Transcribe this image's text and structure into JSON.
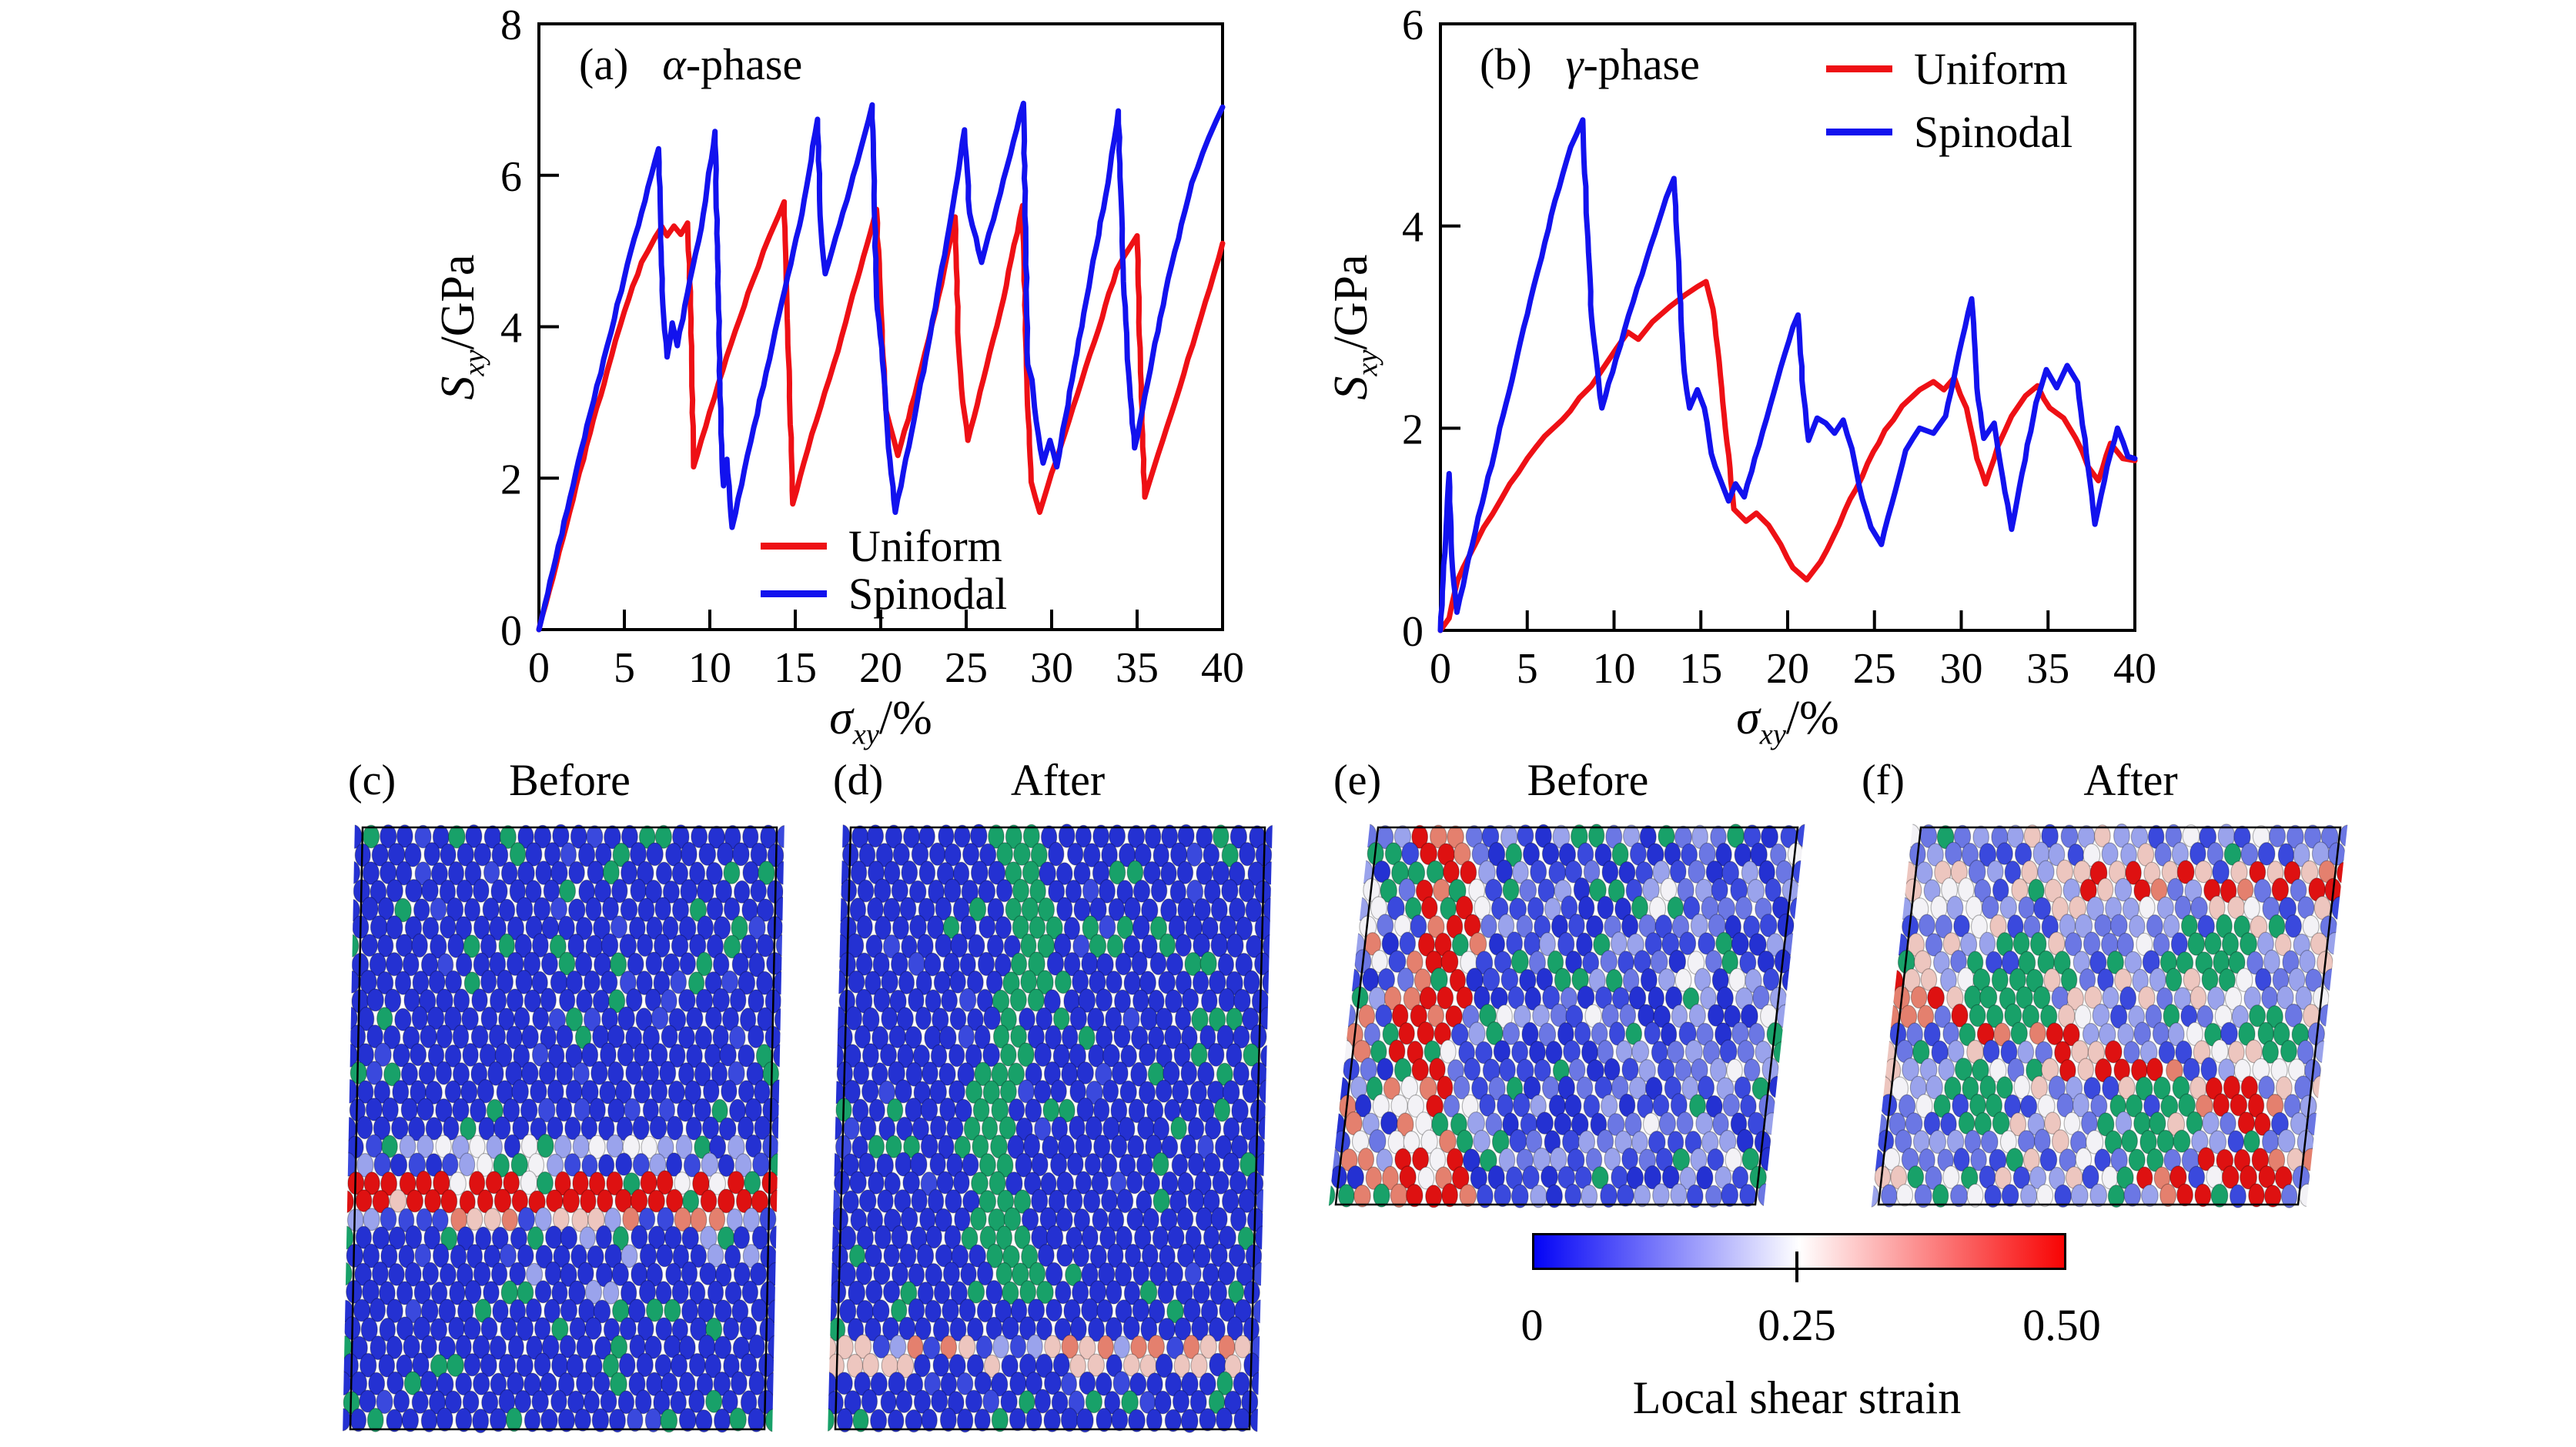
{
  "panels": {
    "a": {
      "tag": "(a)",
      "symbol": "α",
      "suffix": "-phase"
    },
    "b": {
      "tag": "(b)",
      "symbol": "γ",
      "suffix": "-phase"
    }
  },
  "axis": {
    "y_var": "S",
    "y_sub": "xy",
    "y_unit": "/GPa",
    "x_var": "σ",
    "x_sub": "xy",
    "x_unit": "/%"
  },
  "chart_data": [
    {
      "type": "line",
      "id": "alpha",
      "title": "(a) α-phase",
      "xlabel": "σxy/%",
      "ylabel": "Sxy/GPa",
      "xlim": [
        0,
        40
      ],
      "ylim": [
        0,
        8
      ],
      "xticks": [
        0,
        5,
        10,
        15,
        20,
        25,
        30,
        35,
        40
      ],
      "yticks": [
        0,
        2,
        4,
        6,
        8
      ],
      "grid": false,
      "legend_position": "inside-bottom-center",
      "series": [
        {
          "name": "Uniform",
          "color": "#ee1015",
          "points": [
            [
              0,
              0
            ],
            [
              1,
              0.85
            ],
            [
              2,
              1.72
            ],
            [
              3,
              2.6
            ],
            [
              4,
              3.42
            ],
            [
              5,
              4.2
            ],
            [
              6,
              4.85
            ],
            [
              6.8,
              5.18
            ],
            [
              7.2,
              5.32
            ],
            [
              7.5,
              5.2
            ],
            [
              7.9,
              5.33
            ],
            [
              8.3,
              5.22
            ],
            [
              8.7,
              5.37
            ],
            [
              8.9,
              4.1
            ],
            [
              9.05,
              2.15
            ],
            [
              9.5,
              2.5
            ],
            [
              10.5,
              3.25
            ],
            [
              11.5,
              3.95
            ],
            [
              12.5,
              4.6
            ],
            [
              13.5,
              5.2
            ],
            [
              14.35,
              5.65
            ],
            [
              14.6,
              3.6
            ],
            [
              14.85,
              1.66
            ],
            [
              15.5,
              2.2
            ],
            [
              16.5,
              2.95
            ],
            [
              17.5,
              3.68
            ],
            [
              18.6,
              4.6
            ],
            [
              19.75,
              5.55
            ],
            [
              20.0,
              4.3
            ],
            [
              20.3,
              2.9
            ],
            [
              21.0,
              2.3
            ],
            [
              22.0,
              3.1
            ],
            [
              23.2,
              4.2
            ],
            [
              24.35,
              5.45
            ],
            [
              24.55,
              3.75
            ],
            [
              24.8,
              3.0
            ],
            [
              25.1,
              2.5
            ],
            [
              26.0,
              3.3
            ],
            [
              27.0,
              4.2
            ],
            [
              28.3,
              5.6
            ],
            [
              28.55,
              3.3
            ],
            [
              28.8,
              1.95
            ],
            [
              29.3,
              1.55
            ],
            [
              30.5,
              2.4
            ],
            [
              31.5,
              3.1
            ],
            [
              32.5,
              3.8
            ],
            [
              33.8,
              4.75
            ],
            [
              35.0,
              5.2
            ],
            [
              35.2,
              3.4
            ],
            [
              35.45,
              1.75
            ],
            [
              36.5,
              2.5
            ],
            [
              37.5,
              3.2
            ],
            [
              38.5,
              3.95
            ],
            [
              39.5,
              4.7
            ],
            [
              40,
              5.1
            ]
          ]
        },
        {
          "name": "Spinodal",
          "color": "#1212ee",
          "points": [
            [
              0,
              0
            ],
            [
              1,
              0.95
            ],
            [
              2,
              1.9
            ],
            [
              3,
              2.85
            ],
            [
              4,
              3.75
            ],
            [
              5,
              4.65
            ],
            [
              6,
              5.5
            ],
            [
              7.0,
              6.35
            ],
            [
              7.25,
              4.3
            ],
            [
              7.5,
              3.6
            ],
            [
              7.8,
              4.05
            ],
            [
              8.1,
              3.75
            ],
            [
              8.7,
              4.45
            ],
            [
              9.5,
              5.3
            ],
            [
              10.3,
              6.58
            ],
            [
              10.5,
              4.4
            ],
            [
              10.65,
              2.6
            ],
            [
              10.8,
              1.9
            ],
            [
              11.0,
              2.25
            ],
            [
              11.3,
              1.35
            ],
            [
              12.2,
              2.3
            ],
            [
              13.3,
              3.4
            ],
            [
              14.4,
              4.5
            ],
            [
              15.4,
              5.5
            ],
            [
              16.3,
              6.74
            ],
            [
              16.5,
              5.3
            ],
            [
              16.75,
              4.7
            ],
            [
              17.6,
              5.35
            ],
            [
              18.6,
              6.15
            ],
            [
              19.5,
              6.93
            ],
            [
              19.75,
              4.4
            ],
            [
              20.1,
              3.55
            ],
            [
              20.45,
              2.4
            ],
            [
              20.85,
              1.55
            ],
            [
              21.8,
              2.6
            ],
            [
              22.9,
              3.9
            ],
            [
              24.0,
              5.3
            ],
            [
              24.9,
              6.6
            ],
            [
              25.2,
              5.5
            ],
            [
              25.9,
              4.85
            ],
            [
              26.8,
              5.6
            ],
            [
              28.35,
              6.95
            ],
            [
              28.6,
              3.5
            ],
            [
              28.85,
              3.3
            ],
            [
              29.1,
              2.75
            ],
            [
              29.5,
              2.2
            ],
            [
              29.9,
              2.5
            ],
            [
              30.3,
              2.15
            ],
            [
              31.2,
              3.3
            ],
            [
              32.3,
              4.7
            ],
            [
              33.3,
              5.9
            ],
            [
              33.9,
              6.85
            ],
            [
              34.2,
              4.6
            ],
            [
              34.5,
              3.4
            ],
            [
              34.85,
              2.4
            ],
            [
              35.9,
              3.6
            ],
            [
              37.0,
              4.8
            ],
            [
              38.2,
              5.9
            ],
            [
              39.2,
              6.5
            ],
            [
              40,
              6.9
            ]
          ]
        }
      ]
    },
    {
      "type": "line",
      "id": "gamma",
      "title": "(b) γ-phase",
      "xlabel": "σxy/%",
      "ylabel": "Sxy/GPa",
      "xlim": [
        0,
        40
      ],
      "ylim": [
        0,
        6
      ],
      "xticks": [
        0,
        5,
        10,
        15,
        20,
        25,
        30,
        35,
        40
      ],
      "yticks": [
        0,
        2,
        4,
        6
      ],
      "grid": false,
      "legend_position": "inside-top-right",
      "series": [
        {
          "name": "Uniform",
          "color": "#ee1015",
          "points": [
            [
              0,
              0
            ],
            [
              0.5,
              0.12
            ],
            [
              1,
              0.5
            ],
            [
              2,
              0.85
            ],
            [
              3,
              1.15
            ],
            [
              4,
              1.45
            ],
            [
              5,
              1.7
            ],
            [
              6,
              1.92
            ],
            [
              7,
              2.08
            ],
            [
              8,
              2.3
            ],
            [
              8.7,
              2.42
            ],
            [
              9.4,
              2.6
            ],
            [
              10.1,
              2.78
            ],
            [
              10.8,
              2.95
            ],
            [
              11.4,
              2.88
            ],
            [
              12.2,
              3.05
            ],
            [
              13.2,
              3.2
            ],
            [
              14.1,
              3.32
            ],
            [
              14.8,
              3.4
            ],
            [
              15.3,
              3.45
            ],
            [
              15.7,
              3.18
            ],
            [
              16.2,
              2.4
            ],
            [
              16.9,
              1.2
            ],
            [
              17.6,
              1.08
            ],
            [
              18.2,
              1.16
            ],
            [
              18.9,
              1.04
            ],
            [
              19.6,
              0.85
            ],
            [
              20.3,
              0.62
            ],
            [
              21.1,
              0.5
            ],
            [
              21.9,
              0.68
            ],
            [
              22.7,
              0.95
            ],
            [
              23.6,
              1.3
            ],
            [
              24.6,
              1.65
            ],
            [
              25.6,
              1.98
            ],
            [
              26.6,
              2.22
            ],
            [
              27.6,
              2.38
            ],
            [
              28.4,
              2.46
            ],
            [
              29.0,
              2.38
            ],
            [
              29.6,
              2.5
            ],
            [
              30.3,
              2.2
            ],
            [
              30.9,
              1.7
            ],
            [
              31.4,
              1.45
            ],
            [
              32.1,
              1.82
            ],
            [
              32.9,
              2.12
            ],
            [
              33.7,
              2.32
            ],
            [
              34.4,
              2.42
            ],
            [
              35.1,
              2.2
            ],
            [
              35.9,
              2.1
            ],
            [
              36.6,
              1.9
            ],
            [
              37.3,
              1.62
            ],
            [
              37.9,
              1.48
            ],
            [
              38.6,
              1.85
            ],
            [
              39.3,
              1.7
            ],
            [
              40,
              1.68
            ]
          ]
        },
        {
          "name": "Spinodal",
          "color": "#1212ee",
          "points": [
            [
              0,
              0
            ],
            [
              0.3,
              0.9
            ],
            [
              0.5,
              1.55
            ],
            [
              0.7,
              0.6
            ],
            [
              0.95,
              0.18
            ],
            [
              1.6,
              0.7
            ],
            [
              2.6,
              1.4
            ],
            [
              3.6,
              2.12
            ],
            [
              4.6,
              2.85
            ],
            [
              5.6,
              3.55
            ],
            [
              6.6,
              4.25
            ],
            [
              7.5,
              4.78
            ],
            [
              8.2,
              5.05
            ],
            [
              8.45,
              4.0
            ],
            [
              8.7,
              3.1
            ],
            [
              9.3,
              2.2
            ],
            [
              10.1,
              2.68
            ],
            [
              11.1,
              3.25
            ],
            [
              12.1,
              3.8
            ],
            [
              13.0,
              4.28
            ],
            [
              13.45,
              4.47
            ],
            [
              13.75,
              3.5
            ],
            [
              14.05,
              2.55
            ],
            [
              14.35,
              2.2
            ],
            [
              14.8,
              2.38
            ],
            [
              15.2,
              2.2
            ],
            [
              15.6,
              1.75
            ],
            [
              16.1,
              1.5
            ],
            [
              16.6,
              1.28
            ],
            [
              17.0,
              1.45
            ],
            [
              17.5,
              1.32
            ],
            [
              18.1,
              1.7
            ],
            [
              18.8,
              2.1
            ],
            [
              19.6,
              2.6
            ],
            [
              20.3,
              3.0
            ],
            [
              20.6,
              3.12
            ],
            [
              20.9,
              2.35
            ],
            [
              21.2,
              1.88
            ],
            [
              21.7,
              2.1
            ],
            [
              22.2,
              2.05
            ],
            [
              22.7,
              1.95
            ],
            [
              23.2,
              2.08
            ],
            [
              23.7,
              1.8
            ],
            [
              24.3,
              1.3
            ],
            [
              24.8,
              1.02
            ],
            [
              25.4,
              0.85
            ],
            [
              26.0,
              1.25
            ],
            [
              26.8,
              1.78
            ],
            [
              27.6,
              2.0
            ],
            [
              28.4,
              1.95
            ],
            [
              29.1,
              2.12
            ],
            [
              29.7,
              2.6
            ],
            [
              30.6,
              3.28
            ],
            [
              30.9,
              2.4
            ],
            [
              31.3,
              1.9
            ],
            [
              31.9,
              2.05
            ],
            [
              32.4,
              1.5
            ],
            [
              32.9,
              1.0
            ],
            [
              33.5,
              1.55
            ],
            [
              34.3,
              2.25
            ],
            [
              34.9,
              2.58
            ],
            [
              35.5,
              2.4
            ],
            [
              36.1,
              2.62
            ],
            [
              36.7,
              2.45
            ],
            [
              37.2,
              1.75
            ],
            [
              37.7,
              1.05
            ],
            [
              38.4,
              1.62
            ],
            [
              39.0,
              2.0
            ],
            [
              39.6,
              1.72
            ],
            [
              40,
              1.7
            ]
          ]
        }
      ]
    }
  ],
  "snapshots": [
    {
      "tag": "(c)",
      "title": "Before"
    },
    {
      "tag": "(d)",
      "title": "After"
    },
    {
      "tag": "(e)",
      "title": "Before"
    },
    {
      "tag": "(f)",
      "title": "After"
    }
  ],
  "colorbar": {
    "tick_labels": [
      "0",
      "0.25",
      "0.50"
    ],
    "caption": "Local shear strain",
    "gradient": [
      "#0404f6",
      "#ffffff",
      "#f80404"
    ]
  },
  "palette": {
    "blue": "#2431d2",
    "blue2": "#3a49dd",
    "lightblue": "#6b77e4",
    "lavender": "#9aa3ec",
    "white": "#f3f2f6",
    "green": "#18a169",
    "red": "#de1111",
    "salmon": "#e4806e",
    "pink": "#edc6bf"
  }
}
